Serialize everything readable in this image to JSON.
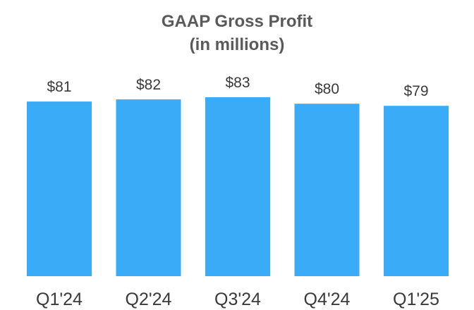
{
  "chart_data": {
    "type": "bar",
    "title": "GAAP Gross Profit",
    "subtitle": "(in millions)",
    "categories": [
      "Q1'24",
      "Q2'24",
      "Q3'24",
      "Q4'24",
      "Q1'25"
    ],
    "values": [
      81,
      82,
      83,
      80,
      79
    ],
    "value_labels": [
      "$81",
      "$82",
      "$83",
      "$80",
      "$79"
    ],
    "xlabel": "",
    "ylabel": "",
    "ylim": [
      0,
      83
    ],
    "grid": false,
    "legend": "none",
    "bar_color": "#3aabf7"
  }
}
